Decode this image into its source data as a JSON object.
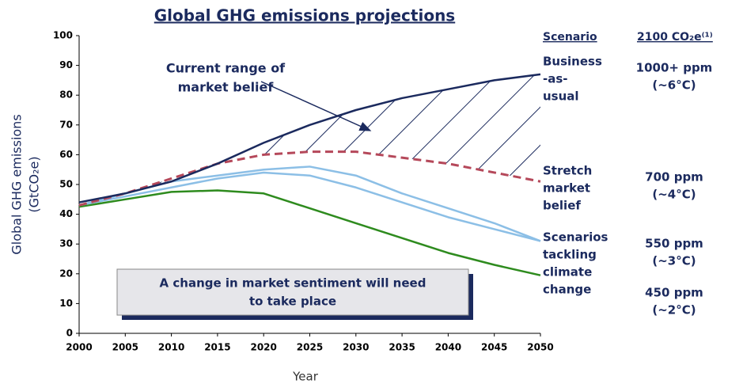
{
  "chart_data": {
    "type": "line",
    "title": "Global GHG emissions projections",
    "y_label": [
      "Global GHG emissions",
      "(GtCO₂e)"
    ],
    "x_label": "Year",
    "x": [
      2000,
      2005,
      2010,
      2015,
      2020,
      2025,
      2030,
      2035,
      2040,
      2045,
      2050
    ],
    "series": [
      {
        "color": "#1b2a5e",
        "dash": false,
        "values": [
          44,
          47,
          51,
          57,
          64,
          70,
          75,
          79,
          82,
          85,
          87
        ]
      },
      {
        "color": "#b5485a",
        "dash": true,
        "values": [
          43,
          47,
          52,
          57,
          60,
          61,
          61,
          59,
          57,
          54,
          51
        ]
      },
      {
        "color": "#8cbfe6",
        "dash": false,
        "values": [
          43,
          47,
          51,
          53,
          55,
          56,
          53,
          47,
          42,
          37,
          31
        ]
      },
      {
        "color": "#8cbfe6",
        "dash": false,
        "values": [
          43,
          46,
          49,
          52,
          54,
          53,
          49,
          44,
          39,
          35,
          31
        ]
      },
      {
        "color": "#2e8b1e",
        "dash": false,
        "values": [
          42.5,
          45,
          47.5,
          48,
          47,
          42,
          37,
          32,
          27,
          23,
          19.5
        ]
      }
    ],
    "xlim": [
      2000,
      2050
    ],
    "xticks": [
      2000,
      2005,
      2010,
      2015,
      2020,
      2025,
      2030,
      2035,
      2040,
      2045,
      2050
    ],
    "ylim": [
      0,
      100
    ],
    "yticks": [
      0,
      10,
      20,
      30,
      40,
      50,
      60,
      70,
      80,
      90,
      100
    ],
    "annotations": {
      "range": [
        "Current range of",
        "market belief"
      ],
      "box": [
        "A change in market sentiment will need",
        "to take place"
      ]
    },
    "scenario_table": {
      "headers": [
        "Scenario",
        "2100 CO₂e⁽¹⁾"
      ],
      "rows": [
        {
          "label": [
            "Business",
            "-as-",
            "usual"
          ],
          "value": [
            "1000+ ppm",
            "(~6°C)"
          ]
        },
        {
          "label": [
            "Stretch",
            "market",
            "belief"
          ],
          "value": [
            "700 ppm",
            "(~4°C)"
          ]
        },
        {
          "label": [
            "Scenarios",
            "tackling",
            "climate",
            "change"
          ],
          "value": [
            "550 ppm",
            "(~3°C)"
          ]
        },
        {
          "value": [
            "450 ppm",
            "(~2°C)"
          ]
        }
      ]
    }
  }
}
